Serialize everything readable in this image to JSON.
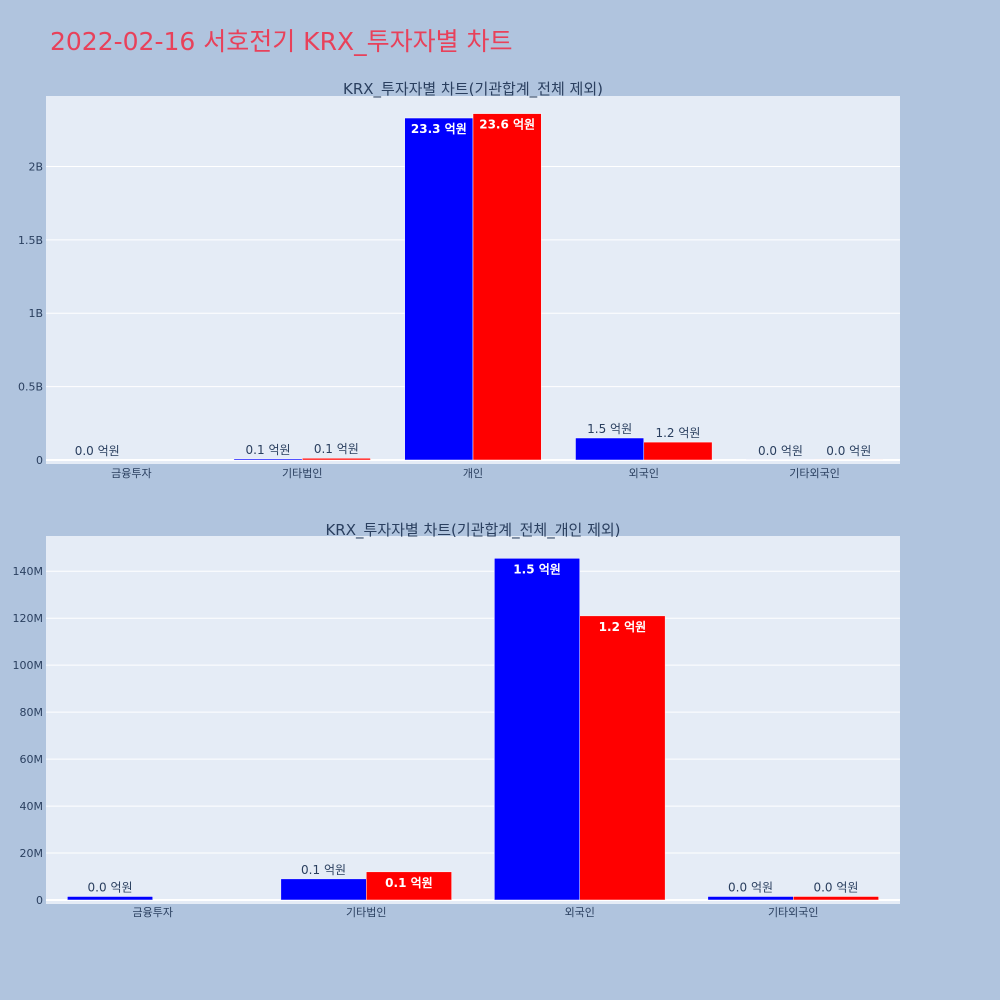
{
  "page": {
    "title": "2022-02-16 서호전기 KRX_투자자별 차트"
  },
  "colors": {
    "background": "#b0c4de",
    "plot_background": "#e5ecf6",
    "title": "#e8415a",
    "series_blue": "#0000ff",
    "series_red": "#ff0000",
    "text": "#2a3f5f"
  },
  "chart_data": [
    {
      "type": "bar",
      "title": "KRX_투자자별 차트(기관합계_전체 제외)",
      "categories": [
        "금융투자",
        "기타법인",
        "개인",
        "외국인",
        "기타외국인"
      ],
      "series": [
        {
          "color": "#0000ff",
          "values": [
            0,
            8000000,
            2330000000,
            150000000,
            1000000
          ],
          "labels": [
            "0.0 억원",
            "0.1 억원",
            "23.3 억원",
            "1.5 억원",
            "0.0 억원"
          ]
        },
        {
          "color": "#ff0000",
          "values": [
            0,
            12000000,
            2360000000,
            122000000,
            1000000
          ],
          "labels": [
            "",
            "0.1 억원",
            "23.6 억원",
            "1.2 억원",
            "0.0 억원"
          ]
        }
      ],
      "yticks": [
        0,
        500000000,
        1000000000,
        1500000000,
        2000000000
      ],
      "ytick_labels": [
        "0",
        "0.5B",
        "1B",
        "1.5B",
        "2B"
      ],
      "ylim": [
        0,
        2480000000
      ],
      "grid": true
    },
    {
      "type": "bar",
      "title": "KRX_투자자별 차트(기관합계_전체_개인 제외)",
      "categories": [
        "금융투자",
        "기타법인",
        "외국인",
        "기타외국인"
      ],
      "series": [
        {
          "color": "#0000ff",
          "values": [
            1500000,
            9000000,
            145500000,
            1500000
          ],
          "labels": [
            "0.0 억원",
            "0.1 억원",
            "1.5 억원",
            "0.0 억원"
          ]
        },
        {
          "color": "#ff0000",
          "values": [
            0,
            12000000,
            121000000,
            1500000
          ],
          "labels": [
            "",
            "0.1 억원",
            "1.2 억원",
            "0.0 억원"
          ]
        }
      ],
      "yticks": [
        0,
        20000000,
        40000000,
        60000000,
        80000000,
        100000000,
        120000000,
        140000000
      ],
      "ytick_labels": [
        "0",
        "20M",
        "40M",
        "60M",
        "80M",
        "100M",
        "120M",
        "140M"
      ],
      "ylim": [
        0,
        155000000
      ],
      "grid": true
    }
  ]
}
